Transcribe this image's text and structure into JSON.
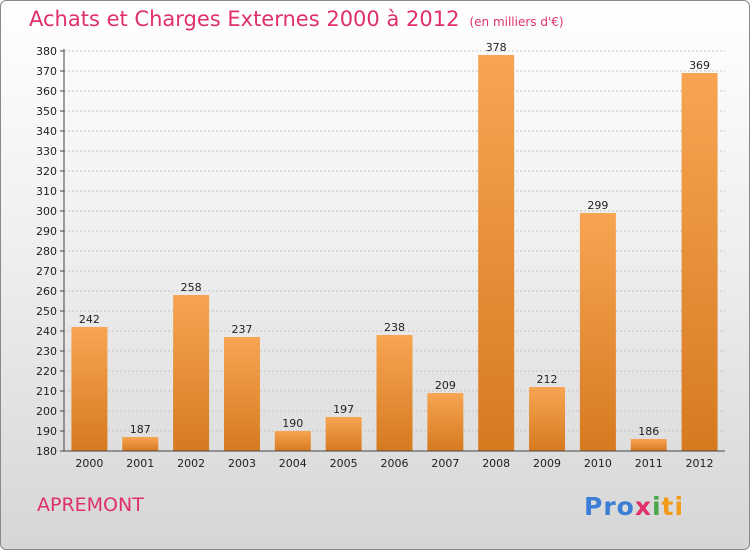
{
  "title": "Achats et Charges Externes 2000 à 2012",
  "unit": "(en milliers d'€)",
  "place": "APREMONT",
  "logo": {
    "p1": "Pro",
    "p2": "x",
    "p3": "i",
    "p4": "ti"
  },
  "colors": {
    "bar_light": "#f7a552",
    "bar_dark": "#d67a20",
    "title": "#e0306a"
  },
  "chart_data": {
    "type": "bar",
    "title": "Achats et Charges Externes 2000 à 2012",
    "subtitle": "(en milliers d'€)",
    "categories": [
      "2000",
      "2001",
      "2002",
      "2003",
      "2004",
      "2005",
      "2006",
      "2007",
      "2008",
      "2009",
      "2010",
      "2011",
      "2012"
    ],
    "values": [
      242,
      187,
      258,
      237,
      190,
      197,
      238,
      209,
      378,
      212,
      299,
      186,
      369
    ],
    "ylim": [
      180,
      380
    ],
    "yticks": [
      180,
      190,
      200,
      210,
      220,
      230,
      240,
      250,
      260,
      270,
      280,
      290,
      300,
      310,
      320,
      330,
      340,
      350,
      360,
      370,
      380
    ],
    "xlabel": "",
    "ylabel": "",
    "grid": true
  }
}
